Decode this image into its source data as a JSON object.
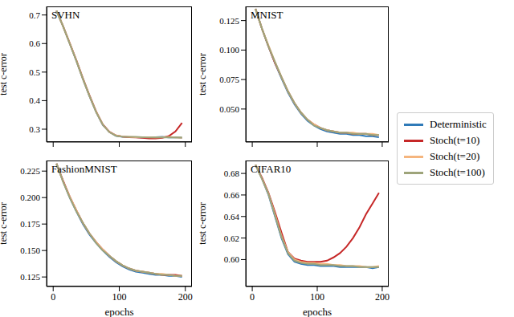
{
  "chart_data": [
    {
      "type": "line",
      "title": "SVHN",
      "y_label": "test c-error",
      "tick_labels": "y",
      "x": [
        5,
        15,
        25,
        35,
        45,
        55,
        65,
        75,
        85,
        95,
        105,
        115,
        125,
        135,
        145,
        155,
        165,
        175,
        185,
        195
      ],
      "xlim": [
        -10,
        210
      ],
      "xticks": [
        0,
        100,
        200
      ],
      "ylim": [
        0.255,
        0.73
      ],
      "yticks": [
        0.3,
        0.4,
        0.5,
        0.6,
        0.7
      ],
      "series": [
        {
          "name": "Deterministic",
          "color": "#2f7ab8",
          "values": [
            0.715,
            0.66,
            0.6,
            0.54,
            0.475,
            0.415,
            0.36,
            0.315,
            0.29,
            0.277,
            0.273,
            0.272,
            0.272,
            0.271,
            0.272,
            0.272,
            0.273,
            0.271,
            0.272,
            0.27
          ]
        },
        {
          "name": "Stoch(t=10)",
          "color": "#c62828",
          "values": [
            0.715,
            0.661,
            0.602,
            0.542,
            0.478,
            0.418,
            0.362,
            0.317,
            0.291,
            0.278,
            0.274,
            0.272,
            0.271,
            0.27,
            0.268,
            0.268,
            0.27,
            0.276,
            0.292,
            0.322
          ]
        },
        {
          "name": "Stoch(t=20)",
          "color": "#f5b57e",
          "values": [
            0.715,
            0.66,
            0.601,
            0.541,
            0.476,
            0.416,
            0.361,
            0.316,
            0.29,
            0.278,
            0.274,
            0.273,
            0.272,
            0.272,
            0.272,
            0.271,
            0.272,
            0.273,
            0.271,
            0.27
          ]
        },
        {
          "name": "Stoch(t=100)",
          "color": "#9ea47a",
          "values": [
            0.715,
            0.66,
            0.6,
            0.54,
            0.476,
            0.416,
            0.36,
            0.316,
            0.29,
            0.277,
            0.274,
            0.273,
            0.273,
            0.272,
            0.271,
            0.272,
            0.271,
            0.272,
            0.271,
            0.271
          ]
        }
      ]
    },
    {
      "type": "line",
      "title": "MNIST",
      "y_label": "test c-error",
      "tick_labels": "y",
      "legend": "right",
      "x": [
        5,
        15,
        25,
        35,
        45,
        55,
        65,
        75,
        85,
        95,
        105,
        115,
        125,
        135,
        145,
        155,
        165,
        175,
        185,
        195
      ],
      "xlim": [
        -10,
        210
      ],
      "xticks": [
        0,
        100,
        200
      ],
      "ylim": [
        0.022,
        0.137
      ],
      "yticks": [
        {
          "value": 0.05,
          "label": "0.050"
        },
        0.075,
        {
          "value": 0.1,
          "label": "0.100"
        },
        0.125
      ],
      "series": [
        {
          "name": "Deterministic",
          "color": "#2f7ab8",
          "values": [
            0.135,
            0.118,
            0.103,
            0.089,
            0.076,
            0.064,
            0.054,
            0.046,
            0.04,
            0.036,
            0.033,
            0.031,
            0.03,
            0.029,
            0.029,
            0.028,
            0.028,
            0.027,
            0.027,
            0.026
          ]
        },
        {
          "name": "Stoch(t=10)",
          "color": "#c62828",
          "values": [
            0.135,
            0.118,
            0.103,
            0.089,
            0.077,
            0.065,
            0.055,
            0.047,
            0.041,
            0.037,
            0.034,
            0.032,
            0.031,
            0.03,
            0.03,
            0.029,
            0.029,
            0.029,
            0.028,
            0.028
          ]
        },
        {
          "name": "Stoch(t=20)",
          "color": "#f5b57e",
          "values": [
            0.135,
            0.118,
            0.104,
            0.09,
            0.077,
            0.065,
            0.055,
            0.047,
            0.041,
            0.037,
            0.034,
            0.032,
            0.031,
            0.03,
            0.03,
            0.03,
            0.029,
            0.029,
            0.029,
            0.028
          ]
        },
        {
          "name": "Stoch(t=100)",
          "color": "#9ea47a",
          "values": [
            0.135,
            0.118,
            0.103,
            0.09,
            0.077,
            0.065,
            0.055,
            0.047,
            0.041,
            0.036,
            0.034,
            0.032,
            0.031,
            0.03,
            0.03,
            0.029,
            0.029,
            0.029,
            0.028,
            0.028
          ]
        }
      ]
    },
    {
      "type": "line",
      "title": "FashionMNIST",
      "x_label": "epochs",
      "y_label": "test c-error",
      "x": [
        5,
        15,
        25,
        35,
        45,
        55,
        65,
        75,
        85,
        95,
        105,
        115,
        125,
        135,
        145,
        155,
        165,
        175,
        185,
        195
      ],
      "xlim": [
        -10,
        210
      ],
      "xticks": [
        0,
        100,
        200
      ],
      "ylim": [
        0.116,
        0.235
      ],
      "yticks": [
        0.125,
        {
          "value": 0.15,
          "label": "0.150"
        },
        0.175,
        {
          "value": 0.2,
          "label": "0.200"
        },
        0.225
      ],
      "series": [
        {
          "name": "Deterministic",
          "color": "#2f7ab8",
          "values": [
            0.232,
            0.215,
            0.2,
            0.187,
            0.175,
            0.165,
            0.157,
            0.15,
            0.144,
            0.139,
            0.135,
            0.132,
            0.13,
            0.129,
            0.128,
            0.127,
            0.127,
            0.126,
            0.126,
            0.125
          ]
        },
        {
          "name": "Stoch(t=10)",
          "color": "#c62828",
          "values": [
            0.232,
            0.216,
            0.201,
            0.188,
            0.176,
            0.166,
            0.158,
            0.151,
            0.145,
            0.14,
            0.136,
            0.133,
            0.131,
            0.13,
            0.129,
            0.128,
            0.127,
            0.127,
            0.127,
            0.126
          ]
        },
        {
          "name": "Stoch(t=20)",
          "color": "#f5b57e",
          "values": [
            0.232,
            0.215,
            0.201,
            0.188,
            0.176,
            0.166,
            0.158,
            0.151,
            0.145,
            0.14,
            0.136,
            0.133,
            0.131,
            0.13,
            0.129,
            0.128,
            0.128,
            0.127,
            0.126,
            0.126
          ]
        },
        {
          "name": "Stoch(t=100)",
          "color": "#9ea47a",
          "values": [
            0.232,
            0.215,
            0.2,
            0.187,
            0.176,
            0.166,
            0.157,
            0.15,
            0.145,
            0.14,
            0.136,
            0.133,
            0.131,
            0.13,
            0.129,
            0.128,
            0.127,
            0.127,
            0.126,
            0.126
          ]
        }
      ]
    },
    {
      "type": "line",
      "title": "CIFAR10",
      "x_label": "epochs",
      "y_label": "test c-error",
      "x": [
        5,
        15,
        25,
        35,
        45,
        55,
        65,
        75,
        85,
        95,
        105,
        115,
        125,
        135,
        145,
        155,
        165,
        175,
        185,
        195
      ],
      "xlim": [
        -10,
        210
      ],
      "xticks": [
        0,
        100,
        200
      ],
      "ylim": [
        0.575,
        0.692
      ],
      "yticks": [
        {
          "value": 0.6,
          "label": "0.60"
        },
        0.62,
        0.64,
        0.66,
        0.68
      ],
      "series": [
        {
          "name": "Deterministic",
          "color": "#2f7ab8",
          "values": [
            0.688,
            0.675,
            0.66,
            0.64,
            0.62,
            0.605,
            0.598,
            0.596,
            0.595,
            0.595,
            0.594,
            0.594,
            0.594,
            0.593,
            0.593,
            0.593,
            0.593,
            0.593,
            0.592,
            0.593
          ]
        },
        {
          "name": "Stoch(t=10)",
          "color": "#c62828",
          "values": [
            0.688,
            0.676,
            0.662,
            0.644,
            0.625,
            0.607,
            0.601,
            0.599,
            0.598,
            0.598,
            0.598,
            0.599,
            0.602,
            0.606,
            0.612,
            0.62,
            0.63,
            0.642,
            0.652,
            0.662
          ]
        },
        {
          "name": "Stoch(t=20)",
          "color": "#f5b57e",
          "values": [
            0.688,
            0.675,
            0.661,
            0.642,
            0.622,
            0.607,
            0.6,
            0.598,
            0.597,
            0.597,
            0.596,
            0.596,
            0.595,
            0.595,
            0.594,
            0.594,
            0.594,
            0.593,
            0.593,
            0.594
          ]
        },
        {
          "name": "Stoch(t=100)",
          "color": "#9ea47a",
          "values": [
            0.688,
            0.675,
            0.661,
            0.641,
            0.621,
            0.606,
            0.599,
            0.597,
            0.596,
            0.596,
            0.595,
            0.595,
            0.595,
            0.594,
            0.594,
            0.594,
            0.593,
            0.593,
            0.593,
            0.593
          ]
        }
      ]
    }
  ]
}
